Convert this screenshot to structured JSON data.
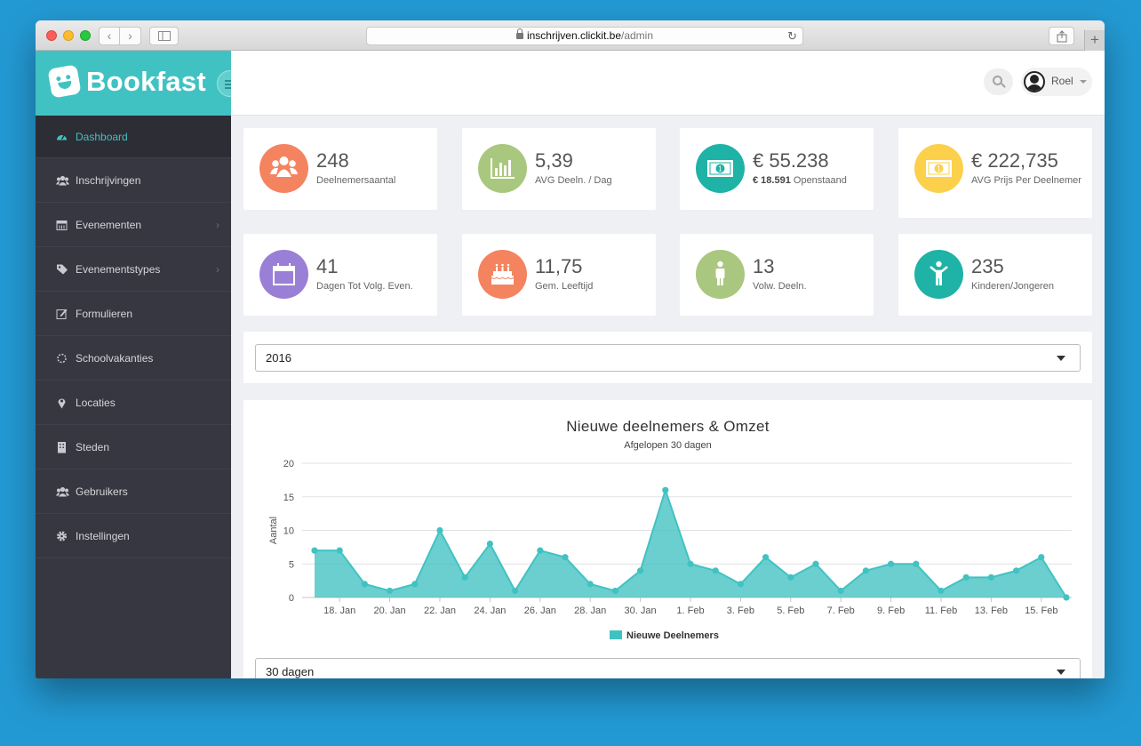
{
  "browser": {
    "url_host": "inschrijven.clickit.be",
    "url_path": "/admin",
    "icons": [
      "back-arrow-icon",
      "forward-arrow-icon",
      "sidebar-icon",
      "lock-icon",
      "reload-icon",
      "share-icon",
      "plus-icon"
    ]
  },
  "brand": {
    "name": "Bookfast",
    "color": "#41c2c2"
  },
  "sidebar": {
    "items": [
      {
        "label": "Dashboard",
        "icon": "dashboard-icon",
        "active": true,
        "has_arrow": false
      },
      {
        "label": "Inschrijvingen",
        "icon": "users-icon",
        "active": false,
        "has_arrow": false
      },
      {
        "label": "Evenementen",
        "icon": "calendar-icon",
        "active": false,
        "has_arrow": true
      },
      {
        "label": "Evenementstypes",
        "icon": "tags-icon",
        "active": false,
        "has_arrow": true
      },
      {
        "label": "Formulieren",
        "icon": "edit-icon",
        "active": false,
        "has_arrow": false
      },
      {
        "label": "Schoolvakanties",
        "icon": "sun-icon",
        "active": false,
        "has_arrow": false
      },
      {
        "label": "Locaties",
        "icon": "map-marker-icon",
        "active": false,
        "has_arrow": false
      },
      {
        "label": "Steden",
        "icon": "building-icon",
        "active": false,
        "has_arrow": false
      },
      {
        "label": "Gebruikers",
        "icon": "users-icon",
        "active": false,
        "has_arrow": false
      },
      {
        "label": "Instellingen",
        "icon": "gear-icon",
        "active": false,
        "has_arrow": false
      }
    ]
  },
  "topbar": {
    "user_name": "Roel"
  },
  "stats": [
    {
      "value": "248",
      "label": "Deelnemersaantal",
      "sub_bold": "",
      "color": "#f4845f",
      "icon": "group-icon"
    },
    {
      "value": "5,39",
      "label": "AVG Deeln. / Dag",
      "sub_bold": "",
      "color": "#a9c77e",
      "icon": "bar-chart-icon"
    },
    {
      "value": "€ 55.238",
      "label": "Openstaand",
      "sub_bold": "€ 18.591",
      "color": "#1fb2a6",
      "icon": "money-icon"
    },
    {
      "value": "€ 222,735",
      "label": "AVG Prijs Per Deelnemer",
      "sub_bold": "",
      "color": "#fcd04b",
      "icon": "money-icon"
    },
    {
      "value": "41",
      "label": "Dagen Tot Volg. Even.",
      "sub_bold": "",
      "color": "#9a7fd6",
      "icon": "calendar-icon"
    },
    {
      "value": "11,75",
      "label": "Gem. Leeftijd",
      "sub_bold": "",
      "color": "#f4845f",
      "icon": "birthday-cake-icon"
    },
    {
      "value": "13",
      "label": "Volw. Deeln.",
      "sub_bold": "",
      "color": "#a9c77e",
      "icon": "male-icon"
    },
    {
      "value": "235",
      "label": "Kinderen/Jongeren",
      "sub_bold": "",
      "color": "#1fb2a6",
      "icon": "child-icon"
    }
  ],
  "year_select": {
    "value": "2016"
  },
  "range_select": {
    "value": "30 dagen"
  },
  "chart_data": {
    "type": "area",
    "title": "Nieuwe deelnemers & Omzet",
    "subtitle": "Afgelopen 30 dagen",
    "ylabel": "Aantal",
    "xlabel": "",
    "ylim": [
      0,
      20
    ],
    "yticks": [
      0,
      5,
      10,
      15,
      20
    ],
    "grid": true,
    "legend_position": "bottom",
    "x_tick_labels": [
      "18. Jan",
      "20. Jan",
      "22. Jan",
      "24. Jan",
      "26. Jan",
      "28. Jan",
      "30. Jan",
      "1. Feb",
      "3. Feb",
      "5. Feb",
      "7. Feb",
      "9. Feb",
      "11. Feb",
      "13. Feb",
      "15. Feb"
    ],
    "x": [
      "17. Jan",
      "18. Jan",
      "19. Jan",
      "20. Jan",
      "21. Jan",
      "22. Jan",
      "23. Jan",
      "24. Jan",
      "25. Jan",
      "26. Jan",
      "27. Jan",
      "28. Jan",
      "29. Jan",
      "30. Jan",
      "31. Jan",
      "1. Feb",
      "2. Feb",
      "3. Feb",
      "4. Feb",
      "5. Feb",
      "6. Feb",
      "7. Feb",
      "8. Feb",
      "9. Feb",
      "10. Feb",
      "11. Feb",
      "12. Feb",
      "13. Feb",
      "14. Feb",
      "15. Feb",
      "16. Feb"
    ],
    "series": [
      {
        "name": "Nieuwe Deelnemers",
        "color": "#41c2c2",
        "values": [
          7,
          7,
          2,
          1,
          2,
          10,
          3,
          8,
          1,
          7,
          6,
          2,
          1,
          4,
          16,
          5,
          4,
          2,
          6,
          3,
          5,
          1,
          4,
          5,
          5,
          1,
          3,
          3,
          4,
          6,
          0
        ]
      }
    ]
  }
}
